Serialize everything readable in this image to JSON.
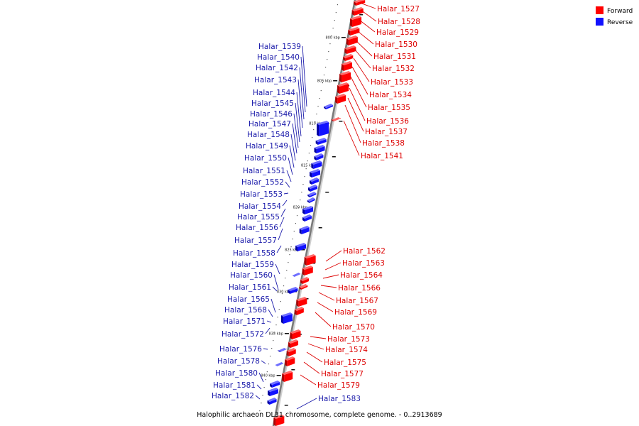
{
  "legend": {
    "forward_label": "Forward",
    "reverse_label": "Reverse",
    "forward_color": "#ff0000",
    "reverse_color": "#1111ff",
    "label_forward_color": "#dd0000",
    "label_reverse_color": "#1a1aaa"
  },
  "caption": "Halophilic archaeon DL31 chromosome, complete genome. - 0..2913689",
  "scale_ticks": [
    "800 kbp",
    "805 kbp",
    "810 kbp",
    "815 kbp",
    "820 kbp",
    "825 kbp",
    "830 kbp",
    "835 kbp",
    "840 kbp"
  ],
  "forward_genes": [
    {
      "name": "Halar_1527"
    },
    {
      "name": "Halar_1528"
    },
    {
      "name": "Halar_1529"
    },
    {
      "name": "Halar_1530"
    },
    {
      "name": "Halar_1531"
    },
    {
      "name": "Halar_1532"
    },
    {
      "name": "Halar_1533"
    },
    {
      "name": "Halar_1534"
    },
    {
      "name": "Halar_1535"
    },
    {
      "name": "Halar_1536"
    },
    {
      "name": "Halar_1537"
    },
    {
      "name": "Halar_1538"
    },
    {
      "name": "Halar_1541"
    },
    {
      "name": "Halar_1562"
    },
    {
      "name": "Halar_1563"
    },
    {
      "name": "Halar_1564"
    },
    {
      "name": "Halar_1566"
    },
    {
      "name": "Halar_1567"
    },
    {
      "name": "Halar_1569"
    },
    {
      "name": "Halar_1570"
    },
    {
      "name": "Halar_1573"
    },
    {
      "name": "Halar_1574"
    },
    {
      "name": "Halar_1575"
    },
    {
      "name": "Halar_1577"
    },
    {
      "name": "Halar_1579"
    }
  ],
  "reverse_genes": [
    {
      "name": "Halar_1539"
    },
    {
      "name": "Halar_1540"
    },
    {
      "name": "Halar_1542"
    },
    {
      "name": "Halar_1543"
    },
    {
      "name": "Halar_1544"
    },
    {
      "name": "Halar_1545"
    },
    {
      "name": "Halar_1546"
    },
    {
      "name": "Halar_1547"
    },
    {
      "name": "Halar_1548"
    },
    {
      "name": "Halar_1549"
    },
    {
      "name": "Halar_1550"
    },
    {
      "name": "Halar_1551"
    },
    {
      "name": "Halar_1552"
    },
    {
      "name": "Halar_1553"
    },
    {
      "name": "Halar_1554"
    },
    {
      "name": "Halar_1555"
    },
    {
      "name": "Halar_1556"
    },
    {
      "name": "Halar_1557"
    },
    {
      "name": "Halar_1558"
    },
    {
      "name": "Halar_1559"
    },
    {
      "name": "Halar_1560"
    },
    {
      "name": "Halar_1561"
    },
    {
      "name": "Halar_1565"
    },
    {
      "name": "Halar_1568"
    },
    {
      "name": "Halar_1571"
    },
    {
      "name": "Halar_1572"
    },
    {
      "name": "Halar_1576"
    },
    {
      "name": "Halar_1578"
    },
    {
      "name": "Halar_1580"
    },
    {
      "name": "Halar_1581"
    },
    {
      "name": "Halar_1582"
    },
    {
      "name": "Halar_1583"
    }
  ]
}
